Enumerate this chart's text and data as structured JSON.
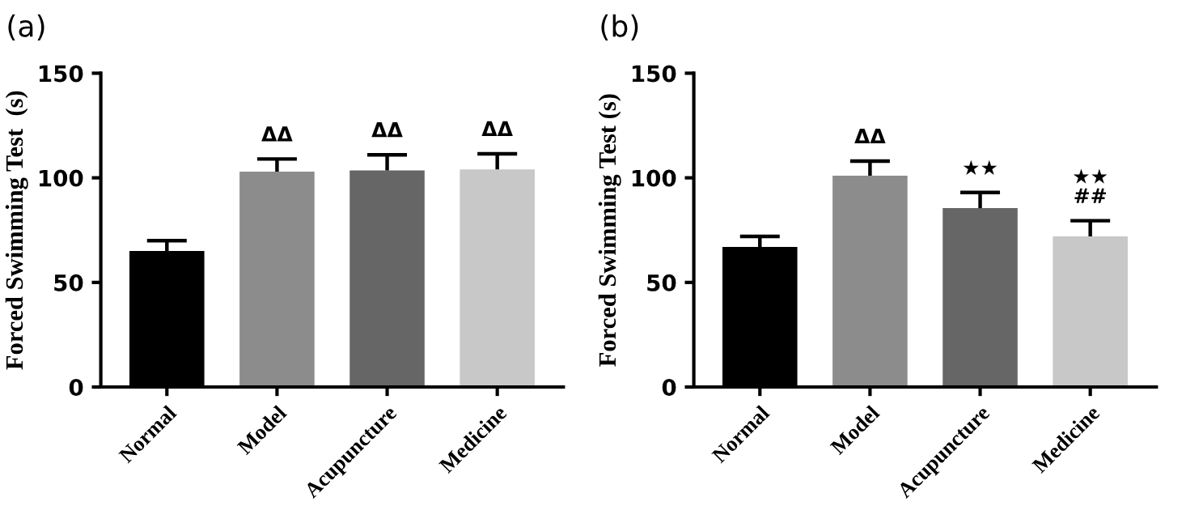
{
  "chart_data": [
    {
      "type": "bar",
      "title": "(a)",
      "ylabel": "Forced Swimming Test  (s)",
      "categories": [
        "Normal",
        "Model",
        "Acupuncture",
        "Medicine"
      ],
      "values": [
        65,
        103,
        103.5,
        104
      ],
      "errors": [
        [
          65,
          70
        ],
        [
          103,
          109
        ],
        [
          103.5,
          111
        ],
        [
          104,
          111.5
        ]
      ],
      "colors": [
        "#000000",
        "#8c8c8c",
        "#666666",
        "#c8c8c8"
      ],
      "ylim": [
        0,
        150
      ],
      "yticks": [
        0,
        50,
        100,
        150
      ],
      "grid": false,
      "annotations": [
        "ΔΔ",
        "ΔΔ",
        "ΔΔ"
      ]
    },
    {
      "type": "bar",
      "title": "(b)",
      "ylabel": "Forced Swimming Test (s)",
      "categories": [
        "Normal",
        "Model",
        "Acupuncture",
        "Medicine"
      ],
      "values": [
        67,
        101,
        85.5,
        72
      ],
      "errors": [
        [
          67,
          72
        ],
        [
          101,
          108
        ],
        [
          85.5,
          93
        ],
        [
          72,
          79.5
        ]
      ],
      "colors": [
        "#000000",
        "#8c8c8c",
        "#666666",
        "#c8c8c8"
      ],
      "ylim": [
        0,
        150
      ],
      "yticks": [
        0,
        50,
        100,
        150
      ],
      "grid": false,
      "annotations": [
        "ΔΔ",
        "★★",
        "★★\n##"
      ]
    }
  ]
}
